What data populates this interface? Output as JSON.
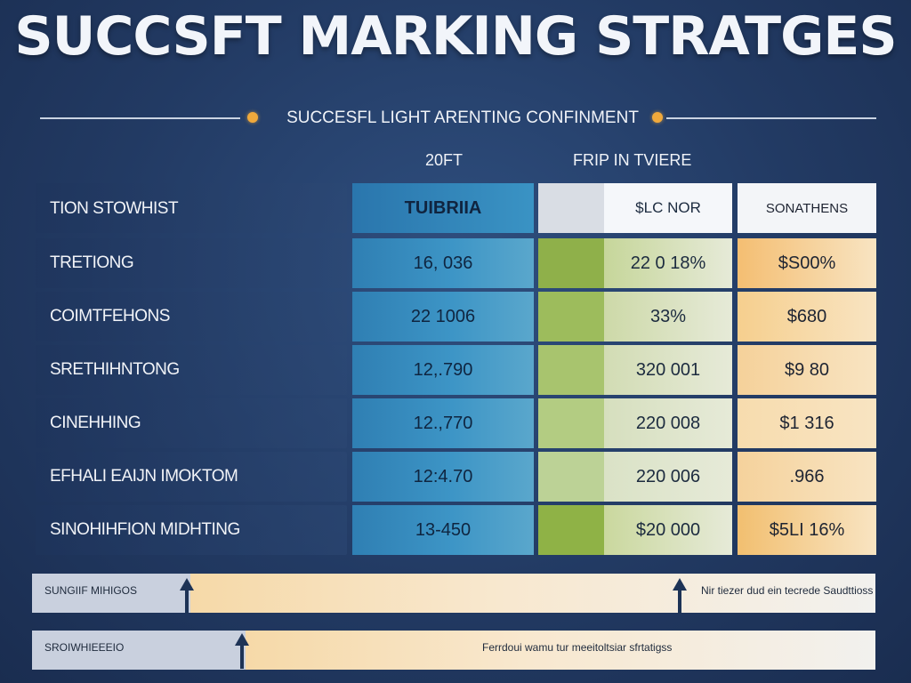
{
  "header": {
    "title": "SUCCSFT MARKING STRATGES",
    "subtitle": "SUCCESFL LIGHT ARENTING CONFINMENT"
  },
  "columns": {
    "year": "20FT",
    "group": "FRIP IN TVIERE",
    "row_header_label": "TION STOWHIST",
    "col1": "TUIBRIIA",
    "col2": "$LC NOR",
    "col3": "SONATHENS"
  },
  "rows": [
    {
      "label": "TRETIONG",
      "v1": "16, 036",
      "v2": "22 0 18%",
      "v3": "$S00%"
    },
    {
      "label": "COIMTFEHONS",
      "v1": "22 1006",
      "v2": "33%",
      "v3": "$680"
    },
    {
      "label": "SRETHIHNTONG",
      "v1": "12,.790",
      "v2": "320 001",
      "v3": "$9 80"
    },
    {
      "label": "CINEHHING",
      "v1": "12.,770",
      "v2": "220 008",
      "v3": "$1 316"
    },
    {
      "label": "EFHALI EAIJN IMOKTOM",
      "v1": "12:4.70",
      "v2": "220 006",
      "v3": ".966"
    },
    {
      "label": "SINOHIHFION MIDHTING",
      "v1": "13-450",
      "v2": "$20 000",
      "v3": "$5LI 16%"
    }
  ],
  "cell_colors": {
    "green_strong": [
      "#8fb04a",
      "#9dbc5c",
      "#a8c46e",
      "#b3cc82",
      "#bcd296",
      "#8fb246"
    ],
    "green_light": [
      "#c6d69a",
      "#cdd9a8",
      "#d2dcb4",
      "#d6dfbe",
      "#dae2c6",
      "#cad89e"
    ],
    "orange": [
      "#f4be72",
      "#f6cf8e",
      "#f5d19a",
      "#f7dcae",
      "#f5d29c",
      "#f2bf70"
    ]
  },
  "footer": {
    "bar1_left": "SUNGIIF MIHIGOS",
    "bar1_right": "Nir tiezer dud ein tecrede Saudttioss",
    "bar2_left": "SROIWHIEEEIO",
    "bar2_right": "Ferrdoui wamu tur meeitoltsiar sfrtatigss"
  },
  "chart_data": {
    "type": "table",
    "title": "SUCCSFT MARKING STRATGES",
    "subtitle": "SUCCESFL LIGHT ARENTING CONFINMENT",
    "columns": [
      "TION STOWHIST",
      "TUIBRIIA",
      "$LC NOR",
      "SONATHENS"
    ],
    "rows": [
      [
        "TRETIONG",
        "16, 036",
        "22 0 18%",
        "$S00%"
      ],
      [
        "COIMTFEHONS",
        "22 1006",
        "33%",
        "$680"
      ],
      [
        "SRETHIHNTONG",
        "12,.790",
        "320 001",
        "$9 80"
      ],
      [
        "CINEHHING",
        "12.,770",
        "220 008",
        "$1 316"
      ],
      [
        "EFHALI EAIJN IMOKTOM",
        "12:4.70",
        "220 006",
        ".966"
      ],
      [
        "SINOHIHFION MIDHTING",
        "13-450",
        "$20 000",
        "$5LI 16%"
      ]
    ]
  }
}
